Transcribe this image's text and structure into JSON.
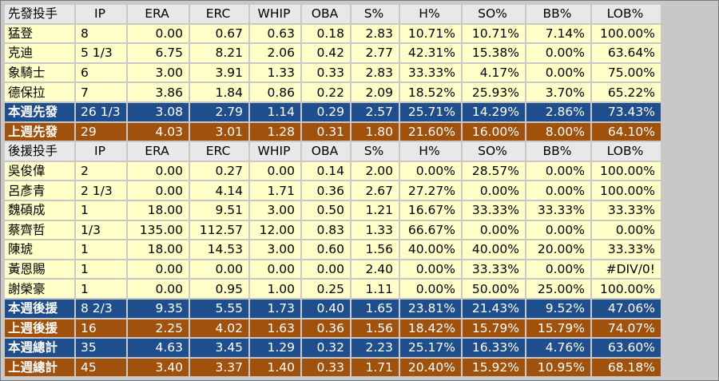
{
  "starters": {
    "header": [
      "先發投手",
      "IP",
      "ERA",
      "ERC",
      "WHIP",
      "OBA",
      "S%",
      "H%",
      "SO%",
      "BB%",
      "LOB%"
    ],
    "rows": [
      [
        "猛登",
        "8",
        "0.00",
        "0.67",
        "0.63",
        "0.18",
        "2.83",
        "10.71%",
        "10.71%",
        "7.14%",
        "100.00%"
      ],
      [
        "克迪",
        "5 1/3",
        "6.75",
        "8.21",
        "2.06",
        "0.42",
        "2.77",
        "42.31%",
        "15.38%",
        "0.00%",
        "63.64%"
      ],
      [
        "象騎士",
        "6",
        "3.00",
        "3.91",
        "1.33",
        "0.33",
        "2.83",
        "33.33%",
        "4.17%",
        "0.00%",
        "75.00%"
      ],
      [
        "德保拉",
        "7",
        "3.86",
        "1.84",
        "0.86",
        "0.22",
        "2.09",
        "18.52%",
        "25.93%",
        "3.70%",
        "65.22%"
      ]
    ],
    "this_week": [
      "本週先發",
      "26 1/3",
      "3.08",
      "2.79",
      "1.14",
      "0.29",
      "2.57",
      "25.71%",
      "14.29%",
      "2.86%",
      "73.43%"
    ],
    "last_week": [
      "上週先發",
      "29",
      "4.03",
      "3.01",
      "1.28",
      "0.31",
      "1.80",
      "21.60%",
      "16.00%",
      "8.00%",
      "64.10%"
    ]
  },
  "relievers": {
    "header": [
      "後援投手",
      "IP",
      "ERA",
      "ERC",
      "WHIP",
      "OBA",
      "S%",
      "H%",
      "SO%",
      "BB%",
      "LOB%"
    ],
    "rows": [
      [
        "吳俊偉",
        "2",
        "0.00",
        "0.27",
        "0.00",
        "0.14",
        "2.00",
        "0.00%",
        "28.57%",
        "0.00%",
        "100.00%"
      ],
      [
        "呂彥青",
        "2 1/3",
        "0.00",
        "4.14",
        "1.71",
        "0.36",
        "2.67",
        "27.27%",
        "0.00%",
        "0.00%",
        "100.00%"
      ],
      [
        "魏碩成",
        "1",
        "18.00",
        "9.51",
        "3.00",
        "0.50",
        "1.21",
        "16.67%",
        "33.33%",
        "33.33%",
        "33.33%"
      ],
      [
        "蔡齊哲",
        "1/3",
        "135.00",
        "112.57",
        "12.00",
        "0.83",
        "1.33",
        "66.67%",
        "0.00%",
        "0.00%",
        "0.00%"
      ],
      [
        "陳琥",
        "1",
        "18.00",
        "14.53",
        "3.00",
        "0.60",
        "1.56",
        "40.00%",
        "40.00%",
        "20.00%",
        "33.33%"
      ],
      [
        "黃恩賜",
        "1",
        "0.00",
        "0.00",
        "0.00",
        "0.00",
        "2.40",
        "0.00%",
        "33.33%",
        "0.00%",
        "#DIV/0!"
      ],
      [
        "謝榮豪",
        "1",
        "0.00",
        "0.95",
        "1.00",
        "0.25",
        "1.11",
        "0.00%",
        "50.00%",
        "25.00%",
        "100.00%"
      ]
    ],
    "this_week": [
      "本週後援",
      "8 2/3",
      "9.35",
      "5.55",
      "1.73",
      "0.40",
      "1.65",
      "23.81%",
      "21.43%",
      "9.52%",
      "47.06%"
    ],
    "last_week": [
      "上週後援",
      "16",
      "2.25",
      "4.02",
      "1.63",
      "0.36",
      "1.56",
      "18.42%",
      "15.79%",
      "15.79%",
      "74.07%"
    ]
  },
  "totals": {
    "this_week": [
      "本週總計",
      "35",
      "4.63",
      "3.45",
      "1.29",
      "0.32",
      "2.23",
      "25.17%",
      "16.33%",
      "4.76%",
      "63.60%"
    ],
    "last_week": [
      "上週總計",
      "45",
      "3.40",
      "3.37",
      "1.40",
      "0.33",
      "1.71",
      "20.40%",
      "15.92%",
      "10.95%",
      "68.18%"
    ]
  },
  "colors": {
    "row_bg": "#ffffc8",
    "header_bg": "#e8e8e8",
    "this_week_bg": "#1f4e8c",
    "last_week_bg": "#a0510c"
  }
}
